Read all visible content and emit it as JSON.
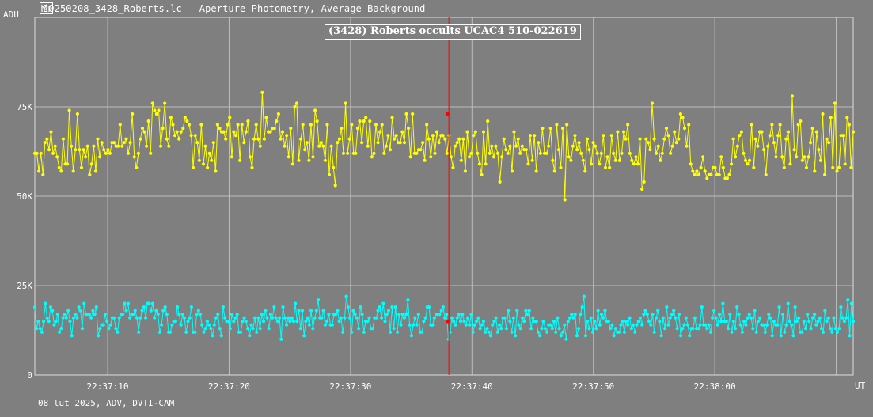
{
  "window": {
    "title": "20250208_3428_Roberts.lc - Aperture Photometry, Average Background",
    "icon": "lightcurve-app-icon"
  },
  "footer": "08 lut 2025, ADV, DVTI-CAM",
  "colors": {
    "background": "#7f7f7f",
    "grid": "#bdbdbd",
    "target_series": "#ffff00",
    "comparison_series": "#00ffff",
    "cursor": "#ff0000"
  },
  "chart_data": {
    "type": "line",
    "title": "(3428) Roberts occults UCAC4 510-022619",
    "ylabel": "ADU",
    "xlabel": "UT",
    "ylim": [
      0,
      100000
    ],
    "y_ticks": [
      {
        "value": 0,
        "label": "0"
      },
      {
        "value": 25000,
        "label": "25K"
      },
      {
        "value": 50000,
        "label": "50K"
      },
      {
        "value": 75000,
        "label": "75K"
      }
    ],
    "x_range_s": [
      0,
      337
    ],
    "x_ticks": [
      {
        "t": 30,
        "label": "22:37:10"
      },
      {
        "t": 80,
        "label": "22:37:20"
      },
      {
        "t": 130,
        "label": "22:37:30"
      },
      {
        "t": 180,
        "label": "22:37:40"
      },
      {
        "t": 230,
        "label": "22:37:50"
      },
      {
        "t": 280,
        "label": "22:38:00"
      }
    ],
    "extra_grid_t": [
      330
    ],
    "cursor_t": 170.5,
    "grid": true,
    "series": [
      {
        "values": [
          62,
          62,
          57,
          62,
          56,
          65,
          66,
          63,
          68,
          62,
          64,
          61,
          58,
          57,
          66,
          59,
          59,
          74,
          64,
          57,
          63,
          73,
          63,
          58,
          63,
          61,
          64,
          56,
          59,
          64,
          57,
          66,
          61,
          65,
          63,
          62,
          63,
          62,
          65,
          65,
          64,
          64,
          70,
          64,
          65,
          66,
          62,
          65,
          73,
          61,
          58,
          62,
          66,
          69,
          68,
          64,
          71,
          62,
          76,
          74,
          73,
          74,
          64,
          69,
          76,
          66,
          64,
          72,
          70,
          67,
          68,
          66,
          68,
          69,
          72,
          71,
          70,
          67,
          58,
          67,
          65,
          60,
          70,
          59,
          64,
          58,
          62,
          60,
          65,
          57,
          70,
          69,
          68,
          68,
          66,
          70,
          72,
          61,
          68,
          67,
          70,
          60,
          70,
          65,
          68,
          71,
          61,
          58,
          66,
          70,
          66,
          64,
          79,
          66,
          72,
          68,
          68,
          69,
          69,
          71,
          73,
          66,
          68,
          64,
          67,
          61,
          69,
          59,
          75,
          76,
          60,
          66,
          70,
          63,
          65,
          60,
          70,
          61,
          74,
          71,
          64,
          65,
          64,
          60,
          70,
          56,
          64,
          58,
          53,
          65,
          66,
          69,
          62,
          76,
          62,
          66,
          70,
          62,
          62,
          69,
          71,
          65,
          71,
          72,
          64,
          71,
          61,
          62,
          70,
          65,
          68,
          70,
          62,
          64,
          67,
          63,
          72,
          66,
          67,
          65,
          65,
          68,
          65,
          73,
          69,
          61,
          73,
          62,
          62,
          63,
          63,
          65,
          60,
          70,
          66,
          61,
          67,
          62,
          68,
          65,
          67,
          67,
          66,
          62,
          67,
          61,
          58,
          64,
          65,
          66,
          60,
          66,
          57,
          68,
          61,
          62,
          67,
          68,
          62,
          59,
          56,
          68,
          59,
          71,
          62,
          64,
          61,
          64,
          62,
          54,
          61,
          66,
          63,
          62,
          64,
          57,
          68,
          64,
          66,
          62,
          64,
          63,
          63,
          59,
          67,
          60,
          67,
          57,
          65,
          62,
          69,
          62,
          62,
          64,
          69,
          60,
          57,
          70,
          63,
          58,
          69,
          49,
          70,
          61,
          60,
          64,
          67,
          63,
          65,
          62,
          60,
          57,
          66,
          63,
          59,
          65,
          64,
          62,
          59,
          62,
          67,
          58,
          61,
          58,
          67,
          62,
          60,
          68,
          60,
          62,
          68,
          66,
          70,
          62,
          60,
          59,
          61,
          59,
          66,
          52,
          54,
          66,
          65,
          63,
          76,
          66,
          62,
          64,
          60,
          62,
          66,
          69,
          67,
          62,
          64,
          68,
          65,
          66,
          73,
          72,
          69,
          64,
          70,
          59,
          57,
          56,
          57,
          56,
          58,
          61,
          57,
          55,
          56,
          56,
          58,
          58,
          56,
          56,
          61,
          58,
          55,
          55,
          56,
          59,
          66,
          61,
          64,
          67,
          68,
          62,
          60,
          59,
          60,
          70,
          58,
          66,
          64,
          68,
          68,
          63,
          56,
          64,
          67,
          70,
          65,
          61,
          67,
          70,
          61,
          58,
          66,
          68,
          59,
          78,
          63,
          61,
          70,
          71,
          60,
          61,
          58,
          61,
          65,
          69,
          57,
          68,
          63,
          60,
          73,
          56,
          66,
          65,
          72,
          58,
          76,
          57,
          58,
          67,
          67,
          59,
          72,
          70,
          58,
          68
        ],
        "cursor_value": 73000
      },
      {
        "values": [
          19,
          13,
          15,
          13,
          12,
          15,
          20,
          16,
          15,
          19,
          18,
          14,
          15,
          17,
          12,
          13,
          16,
          17,
          16,
          18,
          15,
          11,
          16,
          17,
          16,
          19,
          18,
          13,
          20,
          17,
          17,
          17,
          16,
          18,
          17,
          19,
          11,
          13,
          14,
          14,
          17,
          15,
          13,
          14,
          16,
          16,
          13,
          12,
          16,
          17,
          17,
          20,
          18,
          20,
          16,
          17,
          17,
          18,
          16,
          12,
          16,
          18,
          19,
          16,
          20,
          20,
          18,
          20,
          16,
          18,
          17,
          12,
          14,
          18,
          19,
          17,
          12,
          12,
          14,
          15,
          15,
          19,
          17,
          14,
          17,
          16,
          12,
          15,
          16,
          19,
          12,
          12,
          17,
          18,
          17,
          14,
          12,
          13,
          15,
          14,
          13,
          11,
          14,
          16,
          17,
          13,
          11,
          19,
          16,
          15,
          15,
          13,
          17,
          15,
          16,
          17,
          12,
          12,
          15,
          16,
          15,
          13,
          11,
          14,
          13,
          16,
          12,
          16,
          13,
          17,
          15,
          18,
          16,
          13,
          17,
          16,
          19,
          16,
          15,
          16,
          10,
          19,
          16,
          14,
          16,
          15,
          16,
          15,
          20,
          15,
          18,
          13,
          18,
          11,
          15,
          16,
          14,
          18,
          13,
          16,
          18,
          21,
          16,
          16,
          18,
          14,
          15,
          17,
          14,
          14,
          17,
          17,
          18,
          15,
          16,
          12,
          16,
          22,
          19,
          16,
          12,
          18,
          17,
          16,
          13,
          19,
          17,
          12,
          15,
          15,
          16,
          13,
          13,
          16,
          16,
          18,
          19,
          16,
          20,
          15,
          17,
          18,
          12,
          19,
          13,
          19,
          12,
          17,
          14,
          17,
          16,
          17,
          21,
          14,
          11,
          14,
          16,
          14,
          17,
          12,
          12,
          15,
          16,
          19,
          19,
          14,
          14,
          16,
          17,
          17,
          17,
          18,
          19,
          16,
          17,
          10,
          12,
          16,
          15,
          14,
          16,
          17,
          15,
          17,
          15,
          14,
          16,
          14,
          17,
          12,
          14,
          15,
          16,
          13,
          14,
          15,
          12,
          13,
          12,
          11,
          14,
          15,
          16,
          12,
          14,
          13,
          16,
          16,
          13,
          18,
          15,
          12,
          16,
          11,
          18,
          14,
          13,
          16,
          15,
          18,
          17,
          18,
          13,
          16,
          15,
          15,
          12,
          11,
          13,
          15,
          13,
          12,
          14,
          14,
          13,
          15,
          12,
          16,
          13,
          11,
          12,
          14,
          10,
          15,
          16,
          17,
          16,
          17,
          11,
          13,
          17,
          19,
          22,
          11,
          15,
          13,
          16,
          12,
          15,
          13,
          18,
          14,
          17,
          16,
          18,
          15,
          15,
          13,
          14,
          11,
          13,
          12,
          12,
          14,
          15,
          12,
          15,
          14,
          16,
          13,
          14,
          12,
          14,
          15,
          16,
          14,
          17,
          18,
          17,
          15,
          14,
          17,
          12,
          16,
          18,
          15,
          11,
          16,
          13,
          19,
          14,
          16,
          17,
          18,
          16,
          13,
          17,
          11,
          13,
          14,
          16,
          14,
          11,
          13,
          13,
          16,
          13,
          13,
          14,
          19,
          14,
          14,
          13,
          14,
          12,
          16,
          18,
          16,
          14,
          17,
          15,
          20,
          15,
          15,
          13,
          17,
          12,
          15,
          13,
          19,
          17,
          14,
          12,
          15,
          14,
          16,
          17,
          16,
          13,
          18,
          12,
          15,
          16,
          14,
          14,
          12,
          14,
          17,
          16,
          11,
          15,
          14,
          14,
          19,
          11,
          17,
          12,
          14,
          20,
          15,
          14,
          11,
          19,
          15,
          16,
          12,
          12,
          15,
          13,
          17,
          15,
          13,
          16,
          17,
          14,
          15,
          16,
          13,
          12,
          18,
          15,
          16,
          13,
          12,
          16,
          13,
          12,
          13,
          19,
          16,
          15,
          16,
          21,
          11,
          20,
          15
        ],
        "cursor_value": 15000
      }
    ]
  }
}
